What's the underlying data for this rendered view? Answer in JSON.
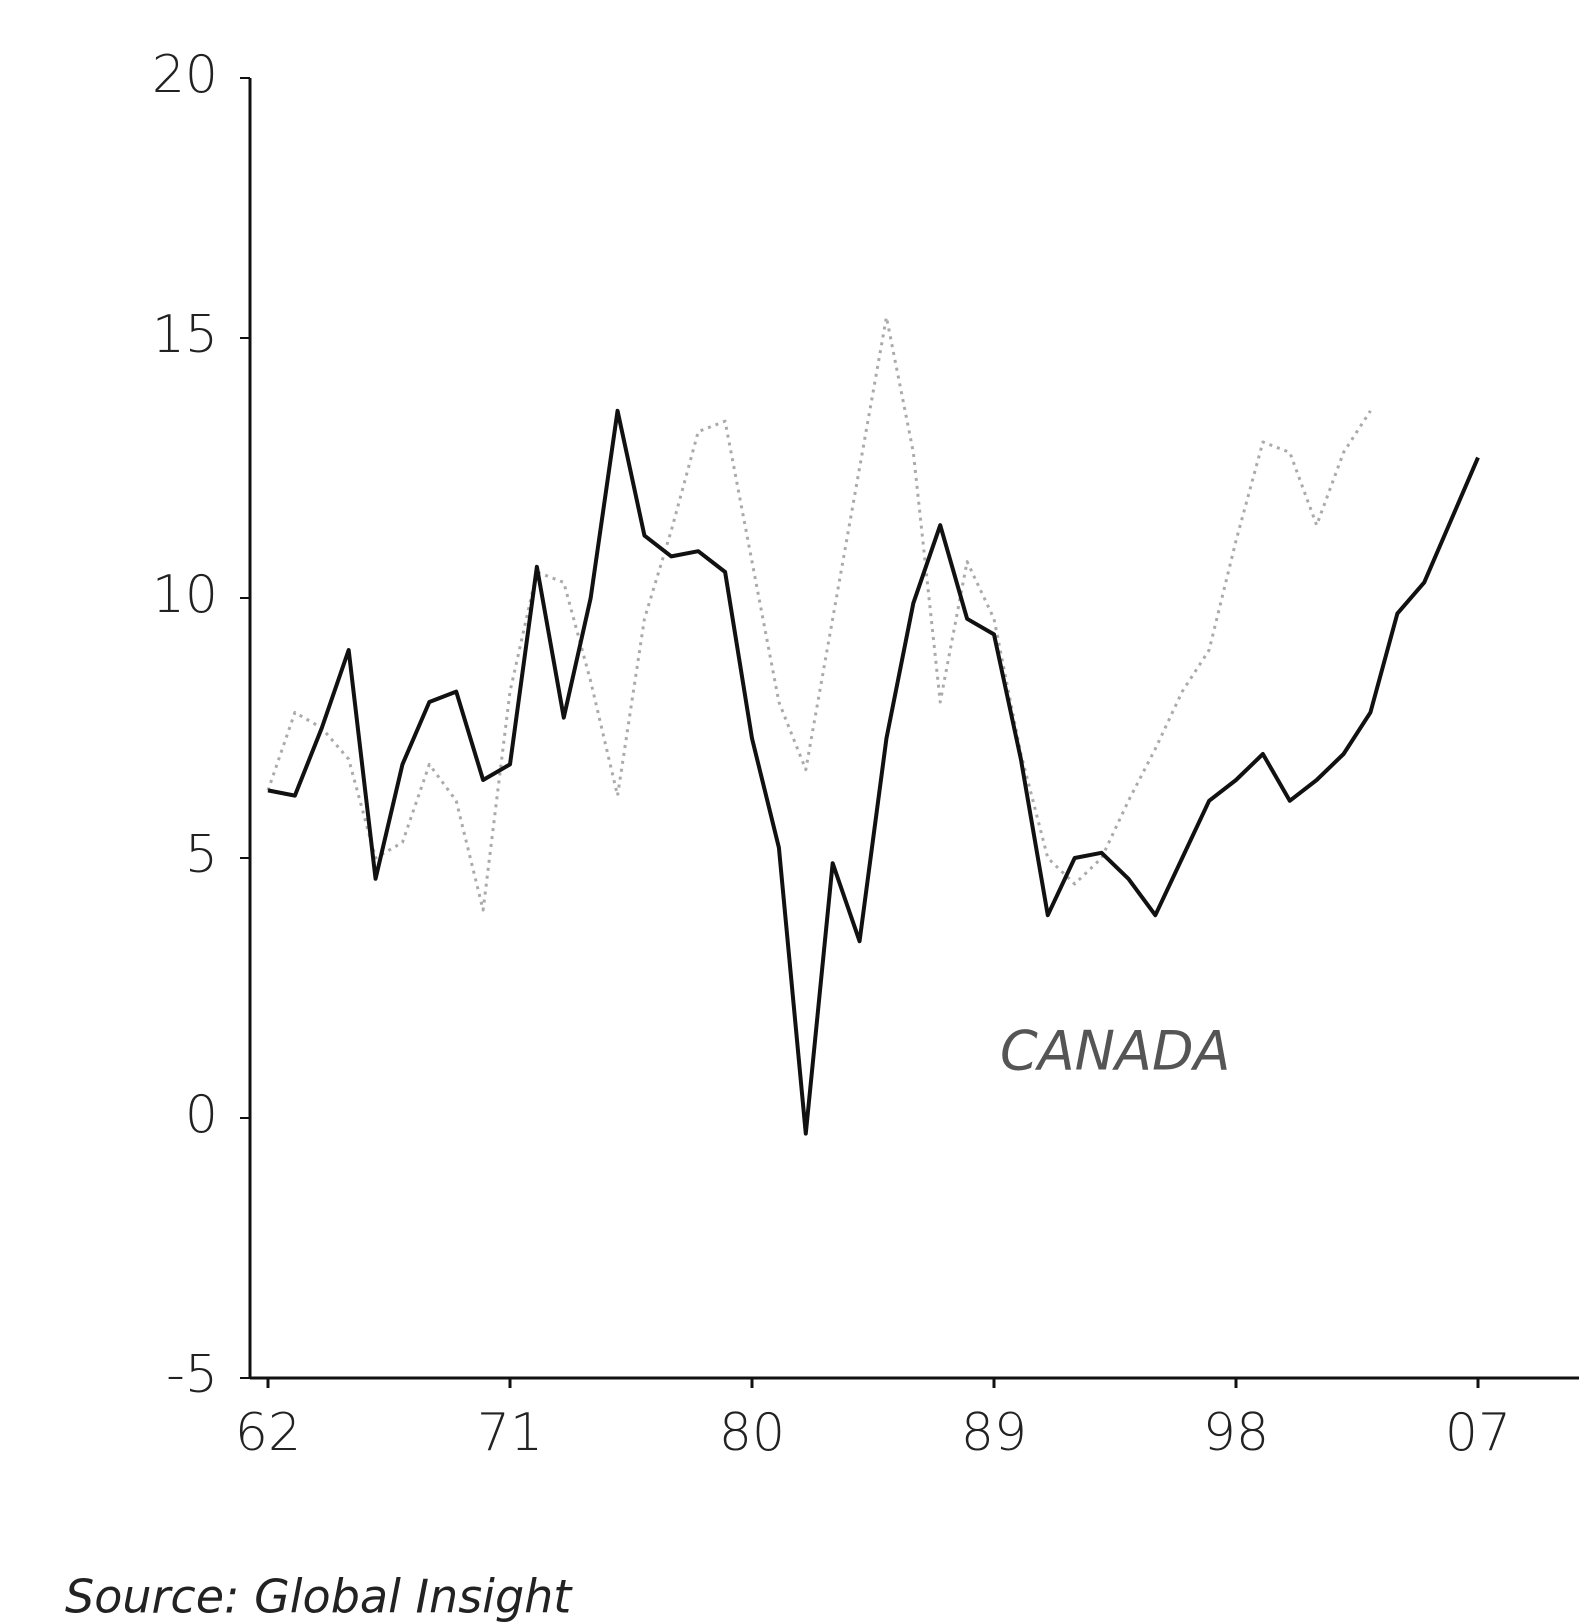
{
  "chart_data": {
    "type": "line",
    "categories": [
      "62",
      null,
      null,
      null,
      null,
      null,
      null,
      null,
      null,
      "71",
      null,
      null,
      null,
      null,
      null,
      null,
      null,
      null,
      "80",
      null,
      null,
      null,
      null,
      null,
      null,
      null,
      null,
      "89",
      null,
      null,
      null,
      null,
      null,
      null,
      null,
      null,
      "98",
      null,
      null,
      null,
      null,
      null,
      null,
      null,
      null,
      "07"
    ],
    "series": [
      {
        "name": "CANADA",
        "color": "#111111",
        "values": [
          6.3,
          6.2,
          7.5,
          9.0,
          4.6,
          6.8,
          8.0,
          8.2,
          6.5,
          6.8,
          10.6,
          7.7,
          10.0,
          13.6,
          11.2,
          10.8,
          10.9,
          10.5,
          7.3,
          5.2,
          -0.3,
          4.9,
          3.4,
          7.3,
          9.9,
          11.4,
          9.6,
          9.3,
          6.9,
          3.9,
          5.0,
          5.1,
          4.6,
          3.9,
          5.0,
          6.1,
          6.5,
          7.0,
          6.1,
          6.5,
          7.0,
          7.8,
          9.7,
          10.3,
          11.5,
          12.7
        ]
      },
      {
        "color": "#aaaaaa",
        "values": [
          6.3,
          7.8,
          7.5,
          6.9,
          5.0,
          5.3,
          6.8,
          6.1,
          4.0,
          8.2,
          10.5,
          10.3,
          8.4,
          6.2,
          9.6,
          11.3,
          13.2,
          13.4,
          10.7,
          8.0,
          6.7,
          9.6,
          12.5,
          15.4,
          12.8,
          8.0,
          10.7,
          9.6,
          7.0,
          5.0,
          4.5,
          5.0,
          6.1,
          7.1,
          8.2,
          9.0,
          11.1,
          13.0,
          12.8,
          11.4,
          12.8,
          13.6,
          null,
          null,
          null,
          null
        ]
      }
    ],
    "ylim": [
      -5,
      20
    ],
    "yticks": [
      20,
      15,
      10,
      5,
      0,
      -5
    ],
    "annotation": "CANADA",
    "source": "Source: Global Insight"
  }
}
